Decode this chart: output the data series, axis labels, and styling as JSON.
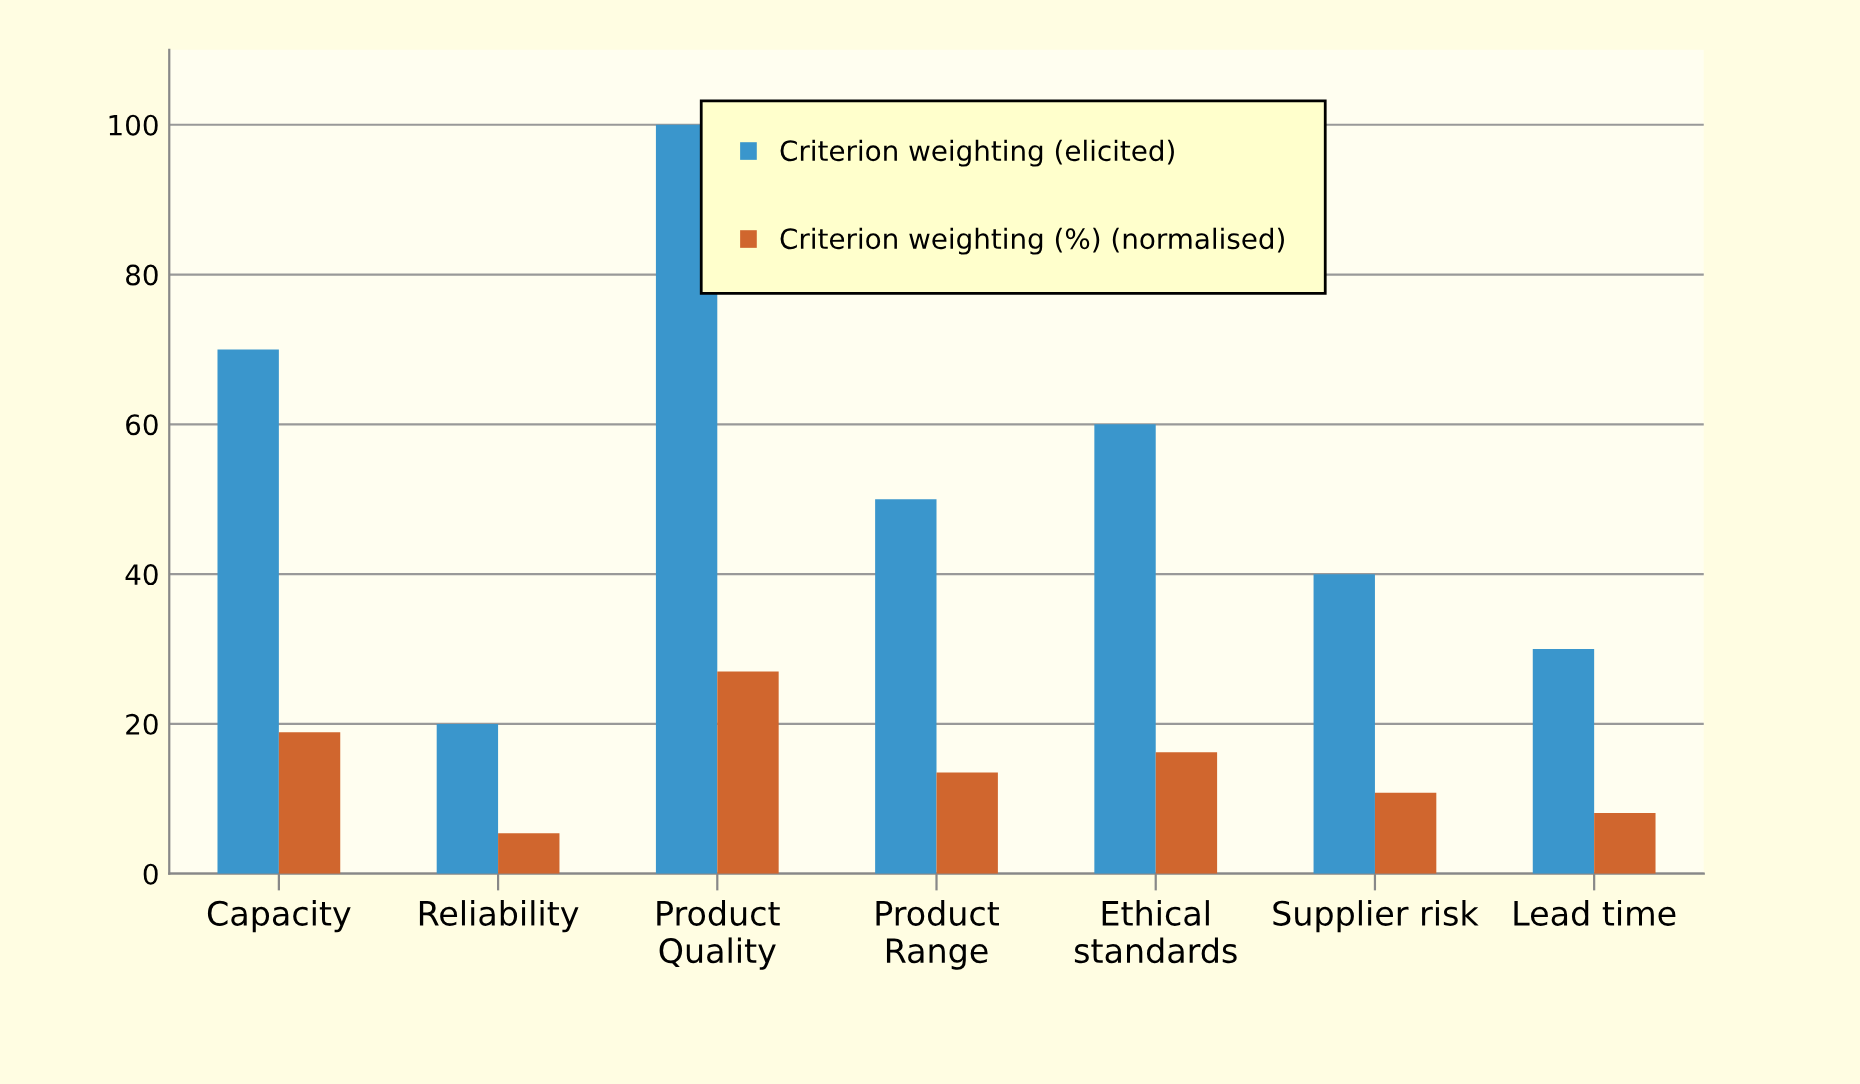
{
  "chart_data": {
    "type": "bar",
    "categories": [
      "Capacity",
      "Reliability",
      "Product\nQuality",
      "Product\nRange",
      "Ethical\nstandards",
      "Supplier risk",
      "Lead time"
    ],
    "series": [
      {
        "name": "Criterion weighting (elicited)",
        "color": "#3a96cc",
        "values": [
          70,
          20,
          100,
          50,
          60,
          40,
          30
        ]
      },
      {
        "name": "Criterion weighting (%) (normalised)",
        "color": "#d0662e",
        "values": [
          18.9,
          5.4,
          27.0,
          13.5,
          16.2,
          10.8,
          8.1
        ]
      }
    ],
    "ylim": [
      0,
      110
    ],
    "yticks": [
      0,
      20,
      40,
      60,
      80,
      100
    ],
    "grid": "y",
    "legend": "top"
  }
}
